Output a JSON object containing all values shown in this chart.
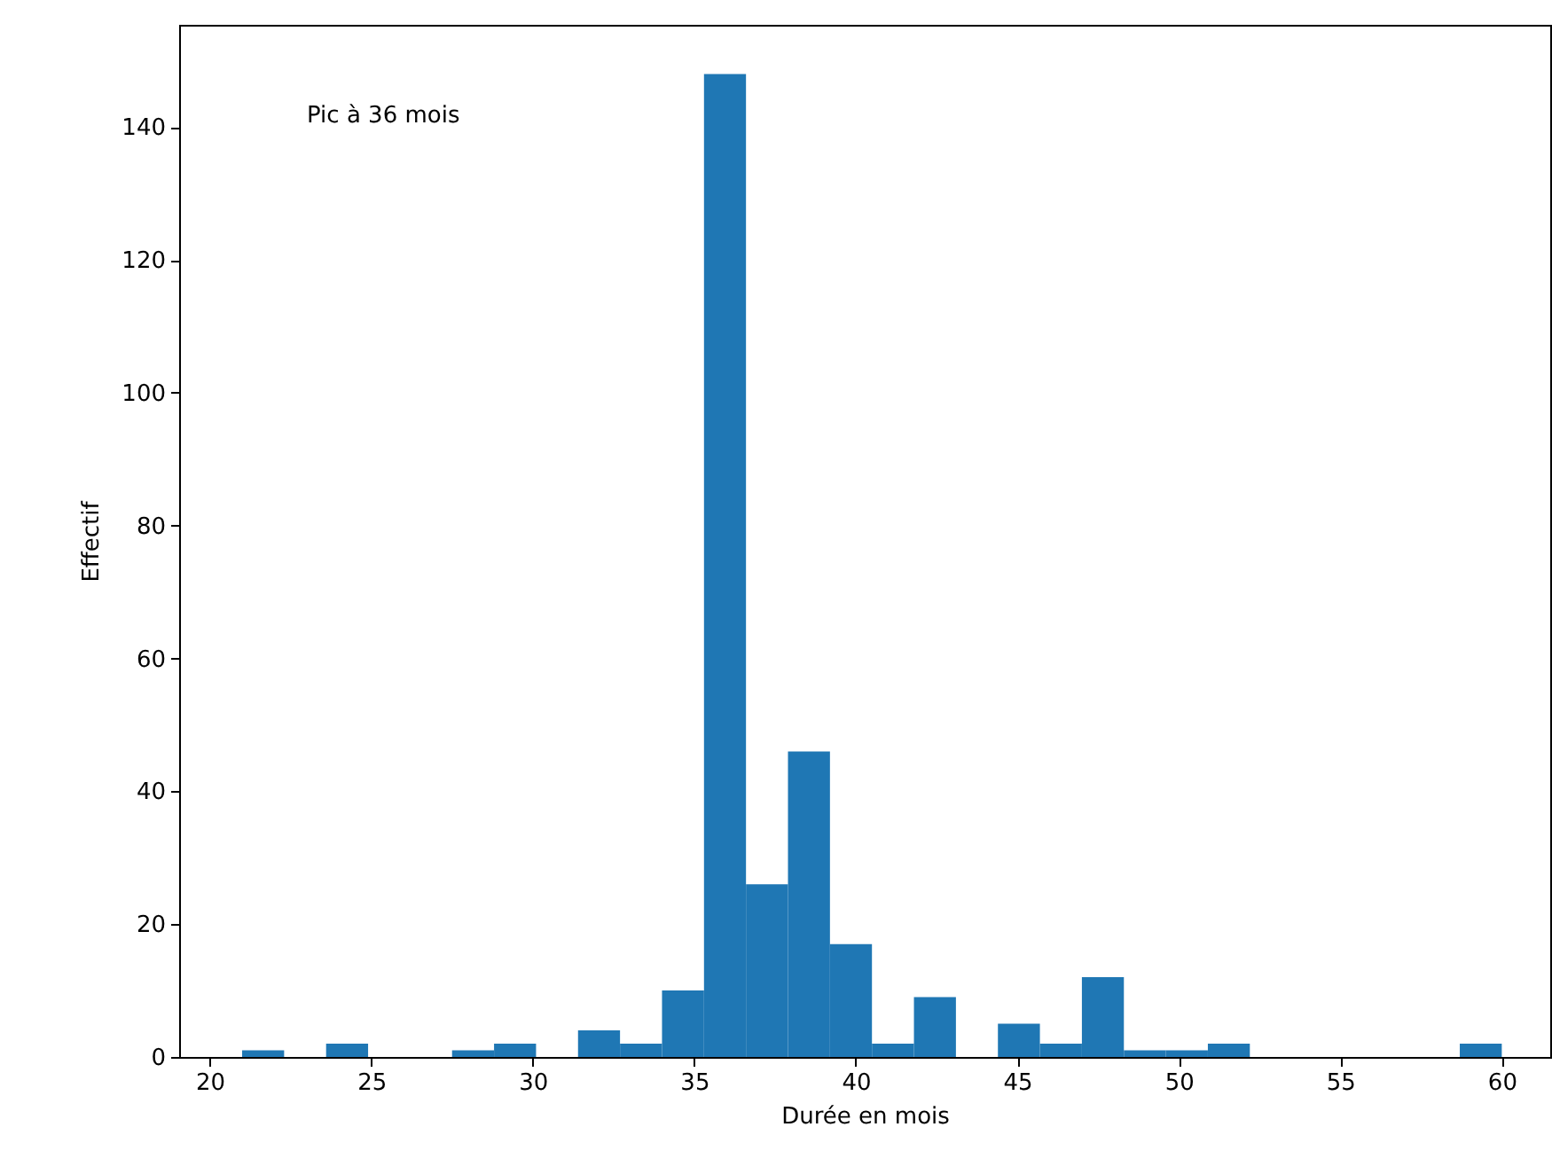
{
  "chart_data": {
    "type": "histogram",
    "xlabel": "Durée en mois",
    "ylabel": "Effectif",
    "annotations": [
      "Pic à 36 mois"
    ],
    "bins": [
      21,
      22.3,
      23.6,
      24.9,
      26.2,
      27.5,
      28.8,
      30.1,
      31.4,
      32.7,
      34,
      35.3,
      36.6,
      37.9,
      39.2,
      40.5,
      41.8,
      43.1,
      44.4,
      45.7,
      47,
      48.3,
      49.6,
      50.9,
      52.2,
      53.5,
      54.8,
      56.1,
      57.4,
      58.7,
      60
    ],
    "values": [
      1,
      0,
      2,
      0,
      0,
      1,
      2,
      0,
      4,
      2,
      10,
      148,
      26,
      46,
      17,
      2,
      9,
      0,
      5,
      2,
      12,
      1,
      1,
      2,
      0,
      0,
      0,
      0,
      0,
      2
    ],
    "color": "#1f77b4",
    "xlim": [
      19.05,
      61.5
    ],
    "ylim": [
      0,
      155.4
    ],
    "xticks": [
      20,
      25,
      30,
      35,
      40,
      45,
      50,
      55,
      60
    ],
    "yticks": [
      0,
      20,
      40,
      60,
      80,
      100,
      120,
      140
    ],
    "grid": false
  }
}
